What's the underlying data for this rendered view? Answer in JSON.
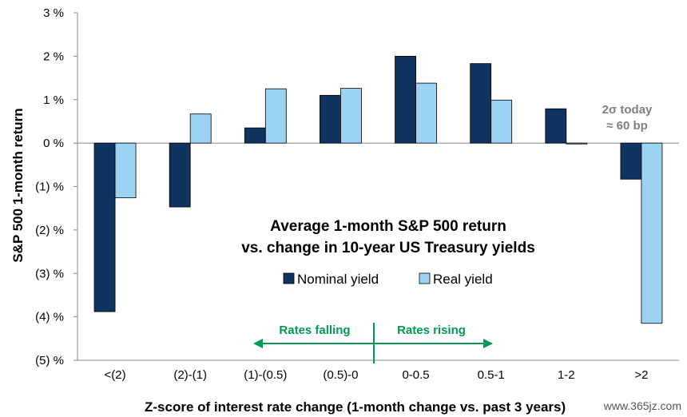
{
  "chart_data": {
    "type": "bar",
    "title_line1": "Average 1-month S&P 500 return",
    "title_line2": "vs. change in 10-year US Treasury yields",
    "xlabel": "Z-score of interest rate change (1-month change vs. past 3 years)",
    "ylabel": "S&P 500 1-month return",
    "ylim": [
      -5,
      3
    ],
    "yticks": [
      3,
      2,
      1,
      0,
      -1,
      -2,
      -3,
      -4,
      -5
    ],
    "ytick_labels": [
      "3 %",
      "2 %",
      "1 %",
      "0 %",
      "(1) %",
      "(2) %",
      "(3) %",
      "(4) %",
      "(5) %"
    ],
    "categories": [
      "<(2)",
      "(2)-(1)",
      "(1)-(0.5)",
      "(0.5)-0",
      "0-0.5",
      "0.5-1",
      "1-2",
      ">2"
    ],
    "series": [
      {
        "name": "Nominal yield",
        "color": "#0f3460",
        "values": [
          -3.88,
          -1.47,
          0.35,
          1.1,
          2.0,
          1.83,
          0.79,
          -0.83
        ]
      },
      {
        "name": "Real yield",
        "color": "#9dd3f2",
        "values": [
          -1.26,
          0.67,
          1.25,
          1.26,
          1.38,
          0.99,
          -0.02,
          -4.15
        ]
      }
    ],
    "annotation_line1": "2σ today",
    "annotation_line2": "≈ 60 bp",
    "rates_falling": "Rates falling",
    "rates_rising": "Rates rising",
    "arrow_color": "#009a55"
  },
  "watermark": "www.365jz.com"
}
